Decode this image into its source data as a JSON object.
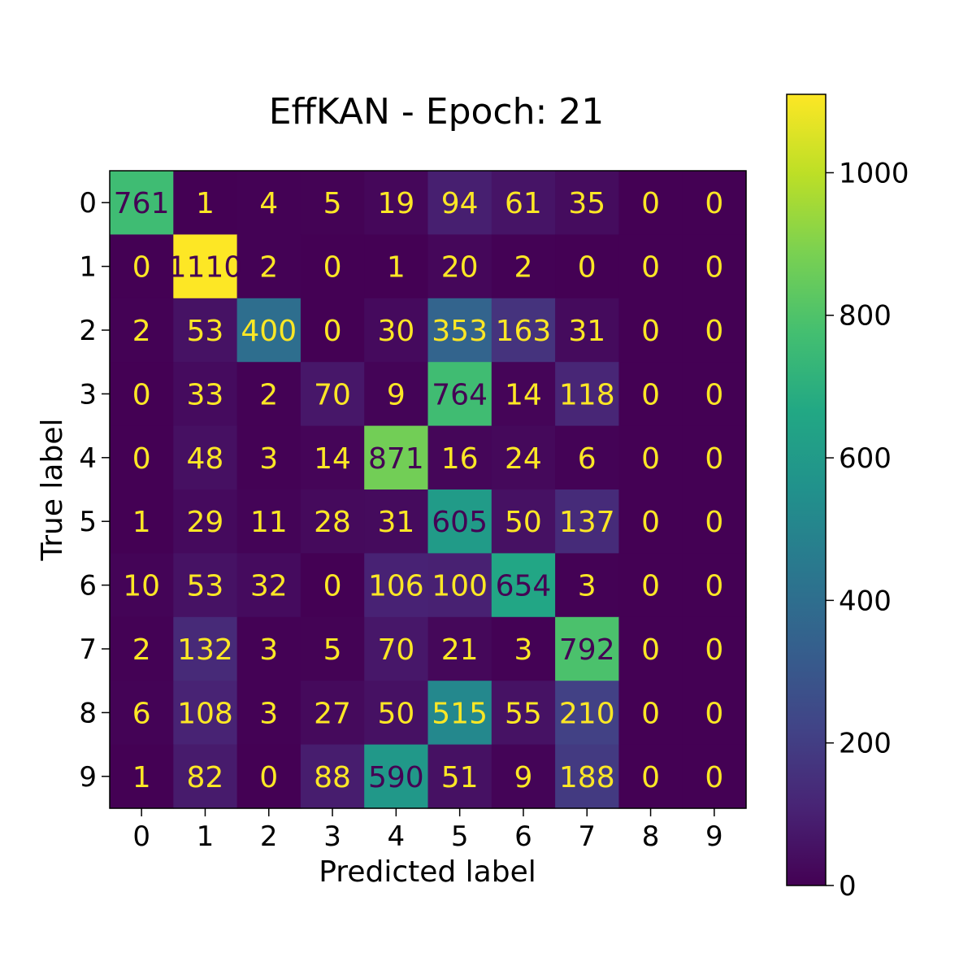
{
  "chart_data": {
    "type": "heatmap",
    "title": "EffKAN - Epoch: 21",
    "xlabel": "Predicted label",
    "ylabel": "True label",
    "x_categories": [
      "0",
      "1",
      "2",
      "3",
      "4",
      "5",
      "6",
      "7",
      "8",
      "9"
    ],
    "y_categories": [
      "0",
      "1",
      "2",
      "3",
      "4",
      "5",
      "6",
      "7",
      "8",
      "9"
    ],
    "matrix": [
      [
        761,
        1,
        4,
        5,
        19,
        94,
        61,
        35,
        0,
        0
      ],
      [
        0,
        1110,
        2,
        0,
        1,
        20,
        2,
        0,
        0,
        0
      ],
      [
        2,
        53,
        400,
        0,
        30,
        353,
        163,
        31,
        0,
        0
      ],
      [
        0,
        33,
        2,
        70,
        9,
        764,
        14,
        118,
        0,
        0
      ],
      [
        0,
        48,
        3,
        14,
        871,
        16,
        24,
        6,
        0,
        0
      ],
      [
        1,
        29,
        11,
        28,
        31,
        605,
        50,
        137,
        0,
        0
      ],
      [
        10,
        53,
        32,
        0,
        106,
        100,
        654,
        3,
        0,
        0
      ],
      [
        2,
        132,
        3,
        5,
        70,
        21,
        3,
        792,
        0,
        0
      ],
      [
        6,
        108,
        3,
        27,
        50,
        515,
        55,
        210,
        0,
        0
      ],
      [
        1,
        82,
        0,
        88,
        590,
        51,
        9,
        188,
        0,
        0
      ]
    ],
    "colormap": "viridis",
    "vmin": 0,
    "vmax": 1110,
    "colorbar_ticks": [
      0,
      200,
      400,
      600,
      800,
      1000
    ],
    "text_color_light": "#fde725",
    "text_color_dark": "#440154"
  }
}
